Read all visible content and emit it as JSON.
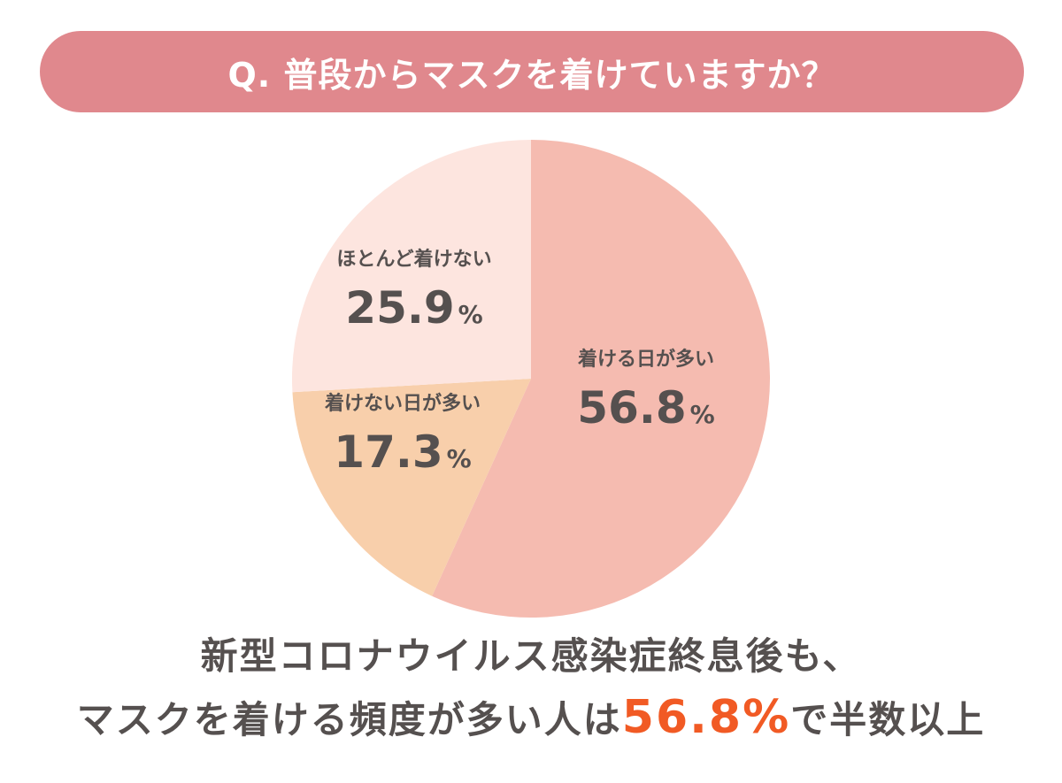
{
  "colors": {
    "banner": "#e0888d",
    "highlight": "#f15a24",
    "text": "#55504f"
  },
  "question": "Q. 普段からマスクを着けていますか？",
  "chart_data": {
    "type": "pie",
    "title": "Q. 普段からマスクを着けていますか？",
    "unit": "%",
    "slices": [
      {
        "label": "着ける日が多い",
        "value": 56.8,
        "value_text": "56.8",
        "color": "#f5bbb0"
      },
      {
        "label": "着けない日が多い",
        "value": 17.3,
        "value_text": "17.3",
        "color": "#f8cfab"
      },
      {
        "label": "ほとんど着けない",
        "value": 25.9,
        "value_text": "25.9",
        "color": "#fde5df"
      }
    ]
  },
  "conclusion": {
    "line1": "新型コロナウイルス感染症終息後も、",
    "line2_before": "マスクを着ける頻度が多い人は",
    "line2_highlight": "56.8%",
    "line2_after": "で半数以上"
  }
}
